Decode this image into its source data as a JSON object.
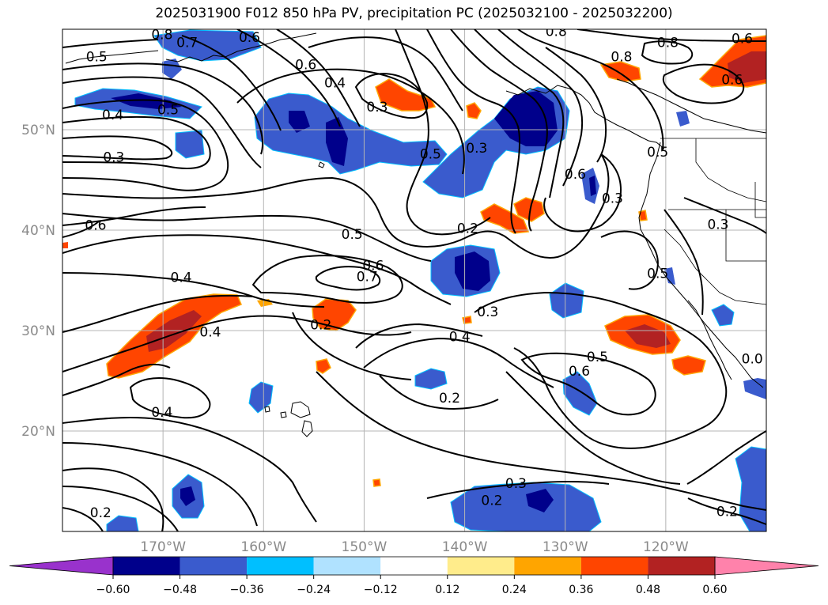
{
  "title": "2025031900 F012 850 hPa PV, precipitation PC (2025032100 - 2025032200)",
  "chart_data": {
    "type": "filled-contour-map",
    "title": "2025031900 F012 850 hPa PV, precipitation PC (2025032100 - 2025032200)",
    "lon_range": [
      -180,
      -110
    ],
    "lat_range": [
      10,
      60
    ],
    "lat_ticks": [
      {
        "value": 20,
        "label": "20°N"
      },
      {
        "value": 30,
        "label": "30°N"
      },
      {
        "value": 40,
        "label": "40°N"
      },
      {
        "value": 50,
        "label": "50°N"
      }
    ],
    "lon_ticks": [
      {
        "value": -170,
        "label": "170°W"
      },
      {
        "value": -160,
        "label": "160°W"
      },
      {
        "value": -150,
        "label": "150°W"
      },
      {
        "value": -140,
        "label": "140°W"
      },
      {
        "value": -130,
        "label": "130°W"
      },
      {
        "value": -120,
        "label": "120°W"
      }
    ],
    "grid": true,
    "colorbar": {
      "orientation": "horizontal",
      "extend": "both",
      "bounds": [
        -0.6,
        -0.48,
        -0.36,
        -0.24,
        -0.12,
        0.12,
        0.24,
        0.36,
        0.48,
        0.6
      ],
      "tick_labels": [
        "−0.60",
        "−0.48",
        "−0.36",
        "−0.24",
        "−0.12",
        "0.12",
        "0.24",
        "0.36",
        "0.48",
        "0.60"
      ],
      "colors": [
        "#9932cc",
        "#00008b",
        "#3a5bcd",
        "#00bfff",
        "#b0e2ff",
        "#ffffff",
        "#ffec8b",
        "#ffa500",
        "#ff4500",
        "#b22222",
        "#ff82ab"
      ]
    },
    "contour_labels": [
      {
        "text": "0.5",
        "lon": -176.6,
        "lat": 57.3
      },
      {
        "text": "0.4",
        "lon": -175.0,
        "lat": 51.5
      },
      {
        "text": "0.5",
        "lon": -169.5,
        "lat": 52.0
      },
      {
        "text": "0.3",
        "lon": -174.9,
        "lat": 47.3
      },
      {
        "text": "0.6",
        "lon": -176.7,
        "lat": 40.5
      },
      {
        "text": "0.8",
        "lon": -170.1,
        "lat": 59.5
      },
      {
        "text": "0.7",
        "lon": -167.6,
        "lat": 58.7
      },
      {
        "text": "0.6",
        "lon": -161.4,
        "lat": 59.2
      },
      {
        "text": "0.6",
        "lon": -155.8,
        "lat": 56.5
      },
      {
        "text": "0.4",
        "lon": -152.9,
        "lat": 54.7
      },
      {
        "text": "0.3",
        "lon": -148.7,
        "lat": 52.3
      },
      {
        "text": "0.5",
        "lon": -143.4,
        "lat": 47.6
      },
      {
        "text": "0.3",
        "lon": -138.8,
        "lat": 48.2
      },
      {
        "text": "0.5",
        "lon": -151.2,
        "lat": 39.6
      },
      {
        "text": "0.6",
        "lon": -149.1,
        "lat": 36.5
      },
      {
        "text": "0.7",
        "lon": -149.7,
        "lat": 35.4
      },
      {
        "text": "0.2",
        "lon": -139.7,
        "lat": 40.2
      },
      {
        "text": "0.6",
        "lon": -129.0,
        "lat": 45.6
      },
      {
        "text": "0.3",
        "lon": -125.3,
        "lat": 43.2
      },
      {
        "text": "0.8",
        "lon": -130.9,
        "lat": 59.8
      },
      {
        "text": "0.8",
        "lon": -124.4,
        "lat": 57.3
      },
      {
        "text": "0.8",
        "lon": -119.8,
        "lat": 58.7
      },
      {
        "text": "0.6",
        "lon": -112.4,
        "lat": 59.1
      },
      {
        "text": "0.6",
        "lon": -113.4,
        "lat": 55.0
      },
      {
        "text": "0.5",
        "lon": -120.8,
        "lat": 47.8
      },
      {
        "text": "0.3",
        "lon": -114.8,
        "lat": 40.6
      },
      {
        "text": "0.5",
        "lon": -120.8,
        "lat": 35.7
      },
      {
        "text": "0.4",
        "lon": -168.2,
        "lat": 35.3
      },
      {
        "text": "0.4",
        "lon": -165.3,
        "lat": 29.9
      },
      {
        "text": "0.4",
        "lon": -170.1,
        "lat": 21.9
      },
      {
        "text": "0.2",
        "lon": -154.3,
        "lat": 30.6
      },
      {
        "text": "0.4",
        "lon": -140.5,
        "lat": 29.4
      },
      {
        "text": "0.3",
        "lon": -137.7,
        "lat": 31.9
      },
      {
        "text": "0.5",
        "lon": -126.8,
        "lat": 27.4
      },
      {
        "text": "0.6",
        "lon": -128.6,
        "lat": 26.0
      },
      {
        "text": "0.2",
        "lon": -141.5,
        "lat": 23.3
      },
      {
        "text": "0.3",
        "lon": -134.9,
        "lat": 14.8
      },
      {
        "text": "0.2",
        "lon": -137.3,
        "lat": 13.1
      },
      {
        "text": "0.2",
        "lon": -176.2,
        "lat": 11.9
      },
      {
        "text": "0.2",
        "lon": -113.9,
        "lat": 12.0
      },
      {
        "text": "0.0",
        "lon": -111.4,
        "lat": 27.2
      }
    ]
  }
}
